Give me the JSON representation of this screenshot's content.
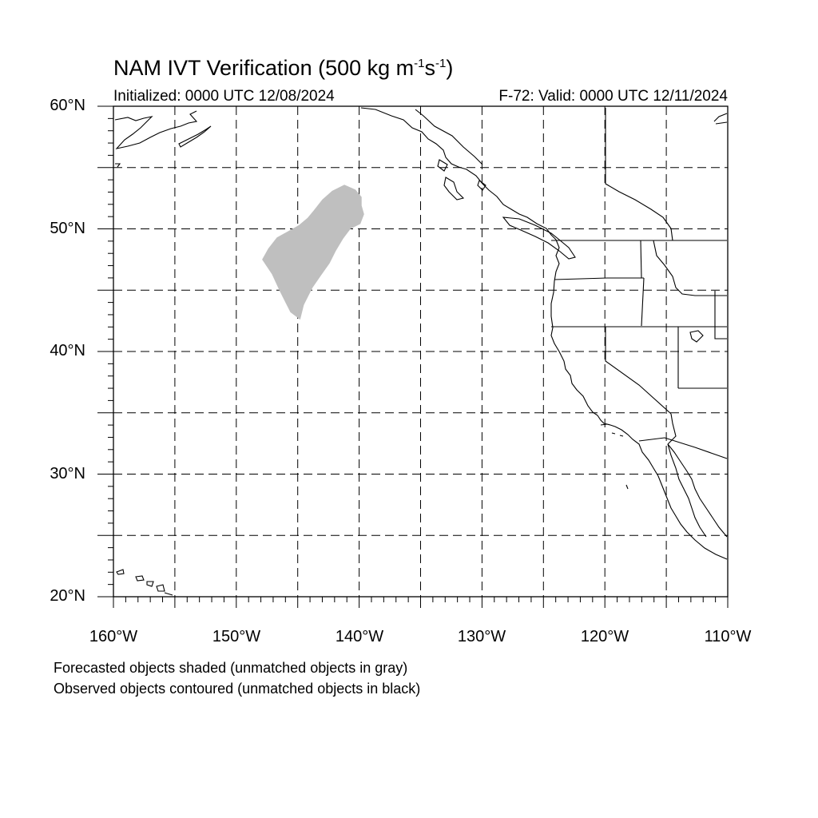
{
  "header": {
    "title_main": "NAM IVT Verification (500 kg m",
    "title_sup1": "-1",
    "title_mid": "s",
    "title_sup2": "-1",
    "title_end": ")",
    "initialized": "Initialized: 0000 UTC 12/08/2024",
    "valid": "F-72: Valid: 0000 UTC 12/11/2024"
  },
  "map": {
    "region": "Northeast Pacific / Western North America",
    "lon_range": [
      -160,
      -110
    ],
    "lat_range": [
      20,
      60
    ],
    "lat_labels": [
      "60°N",
      "50°N",
      "40°N",
      "30°N",
      "20°N"
    ],
    "lon_labels": [
      "160°W",
      "150°W",
      "140°W",
      "130°W",
      "120°W",
      "110°W"
    ],
    "gridline_spacing_deg": 5,
    "gridline_style": "dashed",
    "forecast_object_color": "#bfbfbf",
    "forecast_objects": [
      {
        "status": "unmatched",
        "outline_lonlat": [
          [
            -141.2,
            53.6
          ],
          [
            -140.3,
            53.2
          ],
          [
            -139.8,
            52.6
          ],
          [
            -139.8,
            51.9
          ],
          [
            -139.6,
            51.2
          ],
          [
            -139.9,
            50.4
          ],
          [
            -140.7,
            50.0
          ],
          [
            -141.3,
            49.2
          ],
          [
            -141.9,
            48.2
          ],
          [
            -142.4,
            47.2
          ],
          [
            -143.1,
            46.2
          ],
          [
            -143.8,
            45.2
          ],
          [
            -144.5,
            43.8
          ],
          [
            -144.8,
            42.6
          ],
          [
            -145.6,
            43.2
          ],
          [
            -146.0,
            44.0
          ],
          [
            -146.5,
            45.0
          ],
          [
            -147.1,
            46.3
          ],
          [
            -147.9,
            47.5
          ],
          [
            -147.4,
            48.4
          ],
          [
            -146.7,
            49.3
          ],
          [
            -145.8,
            49.8
          ],
          [
            -144.9,
            50.3
          ],
          [
            -144.2,
            50.9
          ],
          [
            -143.7,
            51.5
          ],
          [
            -143.0,
            52.4
          ],
          [
            -142.2,
            53.1
          ]
        ]
      }
    ],
    "observed_objects": [],
    "coastline_color": "#000000"
  },
  "legend": {
    "line1": "Forecasted objects shaded (unmatched objects in gray)",
    "line2": "Observed objects contoured (unmatched objects in black)"
  }
}
